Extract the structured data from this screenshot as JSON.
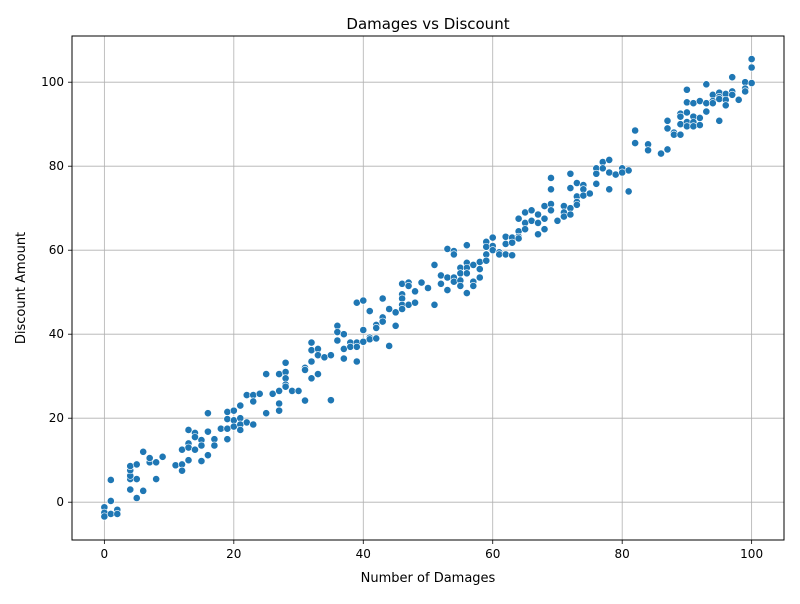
{
  "chart_data": {
    "type": "scatter",
    "title": "Damages vs Discount",
    "xlabel": "Number of Damages",
    "ylabel": "Discount Amount",
    "xlim": [
      -5,
      105
    ],
    "ylim": [
      -9,
      111
    ],
    "xticks": [
      0,
      20,
      40,
      60,
      80,
      100
    ],
    "yticks": [
      0,
      20,
      40,
      60,
      80,
      100
    ],
    "grid": true,
    "marker_color": "#1f77b4",
    "points": [
      {
        "x": 0,
        "y": -1.2
      },
      {
        "x": 0,
        "y": -2.5
      },
      {
        "x": 0,
        "y": -3.4
      },
      {
        "x": 1,
        "y": 5.3
      },
      {
        "x": 1,
        "y": 0.3
      },
      {
        "x": 1,
        "y": -2.8
      },
      {
        "x": 2,
        "y": -1.8
      },
      {
        "x": 2,
        "y": -2.8
      },
      {
        "x": 4,
        "y": 3.0
      },
      {
        "x": 4,
        "y": 5.5
      },
      {
        "x": 4,
        "y": 6.3
      },
      {
        "x": 4,
        "y": 7.6
      },
      {
        "x": 4,
        "y": 8.6
      },
      {
        "x": 5,
        "y": 5.5
      },
      {
        "x": 5,
        "y": 9.0
      },
      {
        "x": 5,
        "y": 1.0
      },
      {
        "x": 6,
        "y": 2.7
      },
      {
        "x": 6,
        "y": 12.0
      },
      {
        "x": 7,
        "y": 9.5
      },
      {
        "x": 7,
        "y": 10.5
      },
      {
        "x": 8,
        "y": 5.5
      },
      {
        "x": 8,
        "y": 9.5
      },
      {
        "x": 9,
        "y": 10.8
      },
      {
        "x": 11,
        "y": 8.8
      },
      {
        "x": 12,
        "y": 12.5
      },
      {
        "x": 12,
        "y": 9.0
      },
      {
        "x": 12,
        "y": 7.5
      },
      {
        "x": 13,
        "y": 17.2
      },
      {
        "x": 13,
        "y": 14.0
      },
      {
        "x": 13,
        "y": 13.0
      },
      {
        "x": 13,
        "y": 10.0
      },
      {
        "x": 14,
        "y": 16.5
      },
      {
        "x": 14,
        "y": 15.5
      },
      {
        "x": 14,
        "y": 12.5
      },
      {
        "x": 15,
        "y": 14.8
      },
      {
        "x": 15,
        "y": 13.5
      },
      {
        "x": 15,
        "y": 9.8
      },
      {
        "x": 16,
        "y": 21.2
      },
      {
        "x": 16,
        "y": 16.8
      },
      {
        "x": 16,
        "y": 11.2
      },
      {
        "x": 17,
        "y": 15.0
      },
      {
        "x": 17,
        "y": 13.5
      },
      {
        "x": 18,
        "y": 17.5
      },
      {
        "x": 19,
        "y": 21.5
      },
      {
        "x": 19,
        "y": 19.8
      },
      {
        "x": 19,
        "y": 17.5
      },
      {
        "x": 19,
        "y": 15.0
      },
      {
        "x": 20,
        "y": 21.8
      },
      {
        "x": 20,
        "y": 19.5
      },
      {
        "x": 20,
        "y": 18.0
      },
      {
        "x": 21,
        "y": 23.0
      },
      {
        "x": 21,
        "y": 20.0
      },
      {
        "x": 21,
        "y": 18.5
      },
      {
        "x": 21,
        "y": 17.2
      },
      {
        "x": 22,
        "y": 25.5
      },
      {
        "x": 22,
        "y": 19.0
      },
      {
        "x": 23,
        "y": 25.5
      },
      {
        "x": 23,
        "y": 24.0
      },
      {
        "x": 23,
        "y": 18.5
      },
      {
        "x": 24,
        "y": 25.8
      },
      {
        "x": 25,
        "y": 30.5
      },
      {
        "x": 25,
        "y": 21.2
      },
      {
        "x": 26,
        "y": 25.8
      },
      {
        "x": 27,
        "y": 30.5
      },
      {
        "x": 27,
        "y": 26.5
      },
      {
        "x": 27,
        "y": 23.5
      },
      {
        "x": 27,
        "y": 21.8
      },
      {
        "x": 28,
        "y": 33.2
      },
      {
        "x": 28,
        "y": 31.0
      },
      {
        "x": 28,
        "y": 29.5
      },
      {
        "x": 28,
        "y": 28.0
      },
      {
        "x": 28,
        "y": 27.5
      },
      {
        "x": 29,
        "y": 26.5
      },
      {
        "x": 30,
        "y": 26.5
      },
      {
        "x": 31,
        "y": 32.0
      },
      {
        "x": 31,
        "y": 31.5
      },
      {
        "x": 31,
        "y": 24.2
      },
      {
        "x": 32,
        "y": 38.0
      },
      {
        "x": 32,
        "y": 36.2
      },
      {
        "x": 32,
        "y": 33.5
      },
      {
        "x": 32,
        "y": 29.5
      },
      {
        "x": 33,
        "y": 36.5
      },
      {
        "x": 33,
        "y": 35.0
      },
      {
        "x": 33,
        "y": 30.5
      },
      {
        "x": 34,
        "y": 34.5
      },
      {
        "x": 35,
        "y": 35.0
      },
      {
        "x": 35,
        "y": 24.3
      },
      {
        "x": 36,
        "y": 42.0
      },
      {
        "x": 36,
        "y": 40.5
      },
      {
        "x": 36,
        "y": 38.5
      },
      {
        "x": 37,
        "y": 40.0
      },
      {
        "x": 37,
        "y": 36.5
      },
      {
        "x": 37,
        "y": 34.2
      },
      {
        "x": 38,
        "y": 38.0
      },
      {
        "x": 38,
        "y": 37.0
      },
      {
        "x": 39,
        "y": 47.5
      },
      {
        "x": 39,
        "y": 38.0
      },
      {
        "x": 39,
        "y": 37.0
      },
      {
        "x": 39,
        "y": 33.5
      },
      {
        "x": 40,
        "y": 48.0
      },
      {
        "x": 40,
        "y": 41.0
      },
      {
        "x": 40,
        "y": 38.2
      },
      {
        "x": 41,
        "y": 45.5
      },
      {
        "x": 41,
        "y": 39.2
      },
      {
        "x": 41,
        "y": 38.8
      },
      {
        "x": 42,
        "y": 42.2
      },
      {
        "x": 42,
        "y": 41.5
      },
      {
        "x": 42,
        "y": 39.0
      },
      {
        "x": 43,
        "y": 48.5
      },
      {
        "x": 43,
        "y": 44.0
      },
      {
        "x": 43,
        "y": 43.0
      },
      {
        "x": 44,
        "y": 46.0
      },
      {
        "x": 44,
        "y": 37.2
      },
      {
        "x": 45,
        "y": 45.2
      },
      {
        "x": 45,
        "y": 42.0
      },
      {
        "x": 46,
        "y": 52.0
      },
      {
        "x": 46,
        "y": 49.5
      },
      {
        "x": 46,
        "y": 48.5
      },
      {
        "x": 46,
        "y": 47.0
      },
      {
        "x": 46,
        "y": 46.0
      },
      {
        "x": 47,
        "y": 52.3
      },
      {
        "x": 47,
        "y": 51.5
      },
      {
        "x": 47,
        "y": 47.0
      },
      {
        "x": 48,
        "y": 50.2
      },
      {
        "x": 48,
        "y": 47.5
      },
      {
        "x": 49,
        "y": 52.3
      },
      {
        "x": 50,
        "y": 51.0
      },
      {
        "x": 51,
        "y": 56.5
      },
      {
        "x": 51,
        "y": 47.0
      },
      {
        "x": 52,
        "y": 54.0
      },
      {
        "x": 52,
        "y": 52.0
      },
      {
        "x": 53,
        "y": 60.3
      },
      {
        "x": 53,
        "y": 53.5
      },
      {
        "x": 53,
        "y": 50.5
      },
      {
        "x": 54,
        "y": 59.8
      },
      {
        "x": 54,
        "y": 59.0
      },
      {
        "x": 54,
        "y": 53.5
      },
      {
        "x": 54,
        "y": 52.5
      },
      {
        "x": 55,
        "y": 55.8
      },
      {
        "x": 55,
        "y": 54.5
      },
      {
        "x": 55,
        "y": 52.8
      },
      {
        "x": 55,
        "y": 51.5
      },
      {
        "x": 56,
        "y": 61.2
      },
      {
        "x": 56,
        "y": 57.0
      },
      {
        "x": 56,
        "y": 55.8
      },
      {
        "x": 56,
        "y": 54.5
      },
      {
        "x": 56,
        "y": 49.8
      },
      {
        "x": 57,
        "y": 56.5
      },
      {
        "x": 57,
        "y": 52.5
      },
      {
        "x": 57,
        "y": 51.5
      },
      {
        "x": 58,
        "y": 57.2
      },
      {
        "x": 58,
        "y": 55.5
      },
      {
        "x": 58,
        "y": 53.5
      },
      {
        "x": 59,
        "y": 62.0
      },
      {
        "x": 59,
        "y": 60.8
      },
      {
        "x": 59,
        "y": 59.0
      },
      {
        "x": 59,
        "y": 57.5
      },
      {
        "x": 60,
        "y": 63.0
      },
      {
        "x": 60,
        "y": 61.0
      },
      {
        "x": 60,
        "y": 60.0
      },
      {
        "x": 61,
        "y": 59.5
      },
      {
        "x": 61,
        "y": 59.0
      },
      {
        "x": 62,
        "y": 63.2
      },
      {
        "x": 62,
        "y": 61.5
      },
      {
        "x": 62,
        "y": 59.0
      },
      {
        "x": 63,
        "y": 63.0
      },
      {
        "x": 63,
        "y": 61.8
      },
      {
        "x": 63,
        "y": 58.8
      },
      {
        "x": 64,
        "y": 67.5
      },
      {
        "x": 64,
        "y": 64.5
      },
      {
        "x": 64,
        "y": 63.2
      },
      {
        "x": 64,
        "y": 62.8
      },
      {
        "x": 65,
        "y": 69.0
      },
      {
        "x": 65,
        "y": 66.5
      },
      {
        "x": 65,
        "y": 65.0
      },
      {
        "x": 66,
        "y": 69.5
      },
      {
        "x": 66,
        "y": 67.0
      },
      {
        "x": 67,
        "y": 68.5
      },
      {
        "x": 67,
        "y": 66.5
      },
      {
        "x": 67,
        "y": 63.8
      },
      {
        "x": 68,
        "y": 70.5
      },
      {
        "x": 68,
        "y": 67.5
      },
      {
        "x": 68,
        "y": 65.0
      },
      {
        "x": 69,
        "y": 77.2
      },
      {
        "x": 69,
        "y": 74.5
      },
      {
        "x": 69,
        "y": 71.0
      },
      {
        "x": 69,
        "y": 69.5
      },
      {
        "x": 70,
        "y": 67.0
      },
      {
        "x": 71,
        "y": 70.5
      },
      {
        "x": 71,
        "y": 69.0
      },
      {
        "x": 71,
        "y": 68.0
      },
      {
        "x": 72,
        "y": 78.2
      },
      {
        "x": 72,
        "y": 74.8
      },
      {
        "x": 72,
        "y": 70.0
      },
      {
        "x": 72,
        "y": 68.5
      },
      {
        "x": 73,
        "y": 76.0
      },
      {
        "x": 73,
        "y": 72.8
      },
      {
        "x": 73,
        "y": 71.5
      },
      {
        "x": 73,
        "y": 70.8
      },
      {
        "x": 74,
        "y": 75.5
      },
      {
        "x": 74,
        "y": 74.5
      },
      {
        "x": 74,
        "y": 73.0
      },
      {
        "x": 75,
        "y": 73.5
      },
      {
        "x": 76,
        "y": 79.5
      },
      {
        "x": 76,
        "y": 78.2
      },
      {
        "x": 76,
        "y": 75.8
      },
      {
        "x": 77,
        "y": 81.0
      },
      {
        "x": 77,
        "y": 79.5
      },
      {
        "x": 78,
        "y": 81.5
      },
      {
        "x": 78,
        "y": 78.5
      },
      {
        "x": 78,
        "y": 74.5
      },
      {
        "x": 79,
        "y": 78.0
      },
      {
        "x": 80,
        "y": 79.5
      },
      {
        "x": 80,
        "y": 78.5
      },
      {
        "x": 81,
        "y": 79.0
      },
      {
        "x": 81,
        "y": 74.0
      },
      {
        "x": 82,
        "y": 88.5
      },
      {
        "x": 82,
        "y": 85.5
      },
      {
        "x": 84,
        "y": 85.2
      },
      {
        "x": 84,
        "y": 83.8
      },
      {
        "x": 86,
        "y": 83.0
      },
      {
        "x": 87,
        "y": 90.8
      },
      {
        "x": 87,
        "y": 89.0
      },
      {
        "x": 87,
        "y": 84.0
      },
      {
        "x": 88,
        "y": 88.0
      },
      {
        "x": 88,
        "y": 87.5
      },
      {
        "x": 89,
        "y": 92.5
      },
      {
        "x": 89,
        "y": 91.8
      },
      {
        "x": 89,
        "y": 90.0
      },
      {
        "x": 89,
        "y": 87.5
      },
      {
        "x": 90,
        "y": 98.2
      },
      {
        "x": 90,
        "y": 95.2
      },
      {
        "x": 90,
        "y": 92.8
      },
      {
        "x": 90,
        "y": 90.5
      },
      {
        "x": 90,
        "y": 89.5
      },
      {
        "x": 91,
        "y": 91.8
      },
      {
        "x": 91,
        "y": 90.5
      },
      {
        "x": 91,
        "y": 89.5
      },
      {
        "x": 91,
        "y": 95.0
      },
      {
        "x": 92,
        "y": 95.5
      },
      {
        "x": 92,
        "y": 91.5
      },
      {
        "x": 92,
        "y": 89.8
      },
      {
        "x": 93,
        "y": 99.5
      },
      {
        "x": 93,
        "y": 95.0
      },
      {
        "x": 93,
        "y": 93.0
      },
      {
        "x": 94,
        "y": 97.0
      },
      {
        "x": 94,
        "y": 95.5
      },
      {
        "x": 94,
        "y": 95.0
      },
      {
        "x": 95,
        "y": 97.5
      },
      {
        "x": 95,
        "y": 96.5
      },
      {
        "x": 95,
        "y": 96.0
      },
      {
        "x": 95,
        "y": 90.8
      },
      {
        "x": 96,
        "y": 97.2
      },
      {
        "x": 96,
        "y": 95.8
      },
      {
        "x": 96,
        "y": 94.5
      },
      {
        "x": 97,
        "y": 101.2
      },
      {
        "x": 97,
        "y": 97.8
      },
      {
        "x": 97,
        "y": 97.0
      },
      {
        "x": 98,
        "y": 95.8
      },
      {
        "x": 99,
        "y": 100.0
      },
      {
        "x": 99,
        "y": 98.5
      },
      {
        "x": 99,
        "y": 97.8
      },
      {
        "x": 100,
        "y": 105.5
      },
      {
        "x": 100,
        "y": 103.5
      },
      {
        "x": 100,
        "y": 99.8
      }
    ]
  }
}
